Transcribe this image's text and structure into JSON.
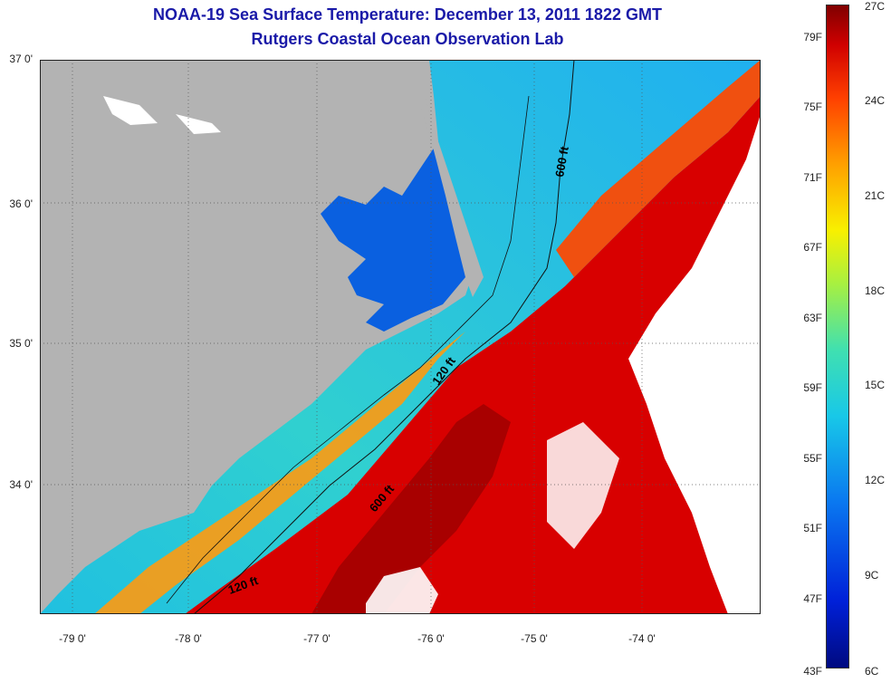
{
  "title_line1": "NOAA-19 Sea Surface Temperature:  December 13, 2011 1822 GMT",
  "title_line2": "Rutgers Coastal Ocean Observation Lab",
  "map": {
    "lat_labels": [
      "37 0'",
      "36 0'",
      "35 0'",
      "34 0'"
    ],
    "lon_labels": [
      "-79 0'",
      "-78 0'",
      "-77 0'",
      "-76 0'",
      "-75 0'",
      "-74 0'"
    ],
    "isobath_labels": {
      "a600_north": "600 ft",
      "a120_mid": "120 ft",
      "a600_south": "600 ft",
      "a120_south": "120 ft"
    },
    "colors": {
      "land": "#b3b3b3",
      "cloud": "#ffffff",
      "warm": "#d80000",
      "hot": "#a80000",
      "cool": "#18b8f0",
      "sound": "#0a60e0"
    }
  },
  "colorbar": {
    "f_labels": [
      "79F",
      "75F",
      "71F",
      "67F",
      "63F",
      "59F",
      "55F",
      "51F",
      "47F",
      "43F"
    ],
    "c_labels": [
      "27C",
      "24C",
      "21C",
      "18C",
      "15C",
      "12C",
      "9C",
      "6C"
    ]
  }
}
